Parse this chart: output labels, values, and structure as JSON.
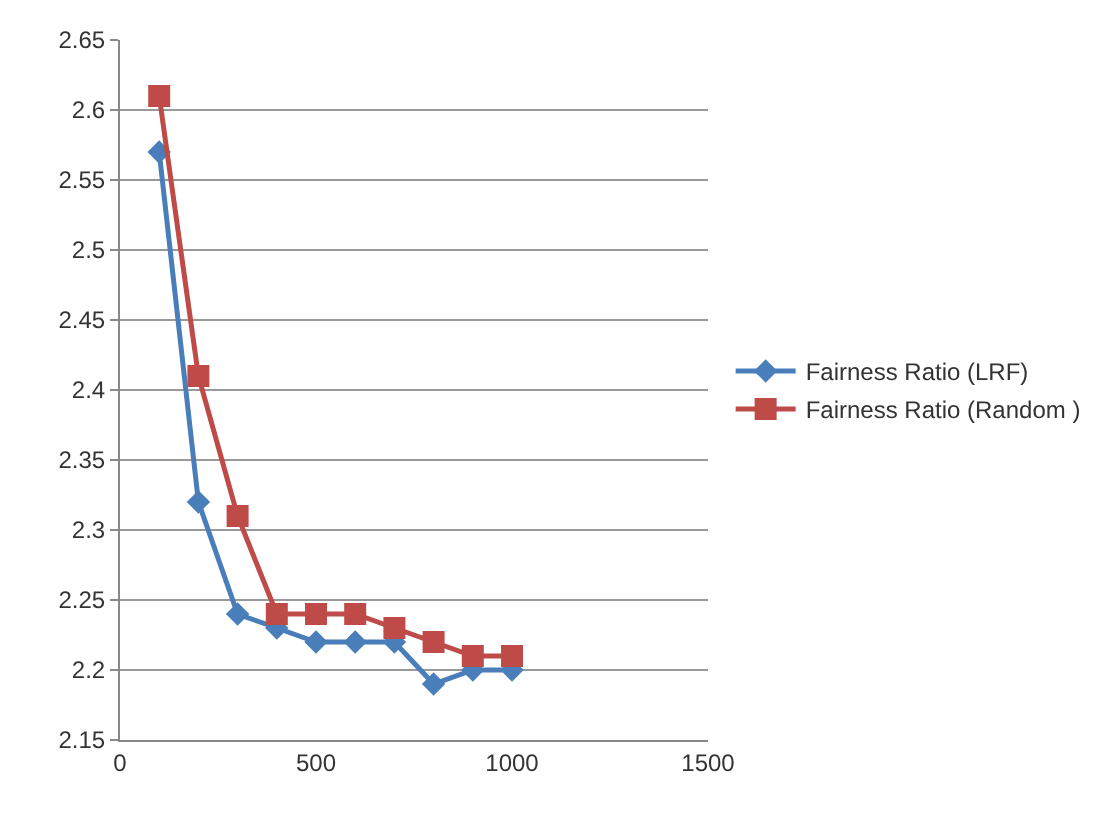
{
  "chart_data": {
    "type": "line",
    "x": [
      100,
      200,
      300,
      400,
      500,
      600,
      700,
      800,
      900,
      1000
    ],
    "series": [
      {
        "name": "Fairness Ratio (LRF)",
        "color": "#4a7ebb",
        "marker": "diamond",
        "values": [
          2.57,
          2.32,
          2.24,
          2.23,
          2.22,
          2.22,
          2.22,
          2.19,
          2.2,
          2.2
        ]
      },
      {
        "name": "Fairness Ratio (Random )",
        "color": "#be4b48",
        "marker": "square",
        "values": [
          2.61,
          2.41,
          2.31,
          2.24,
          2.24,
          2.24,
          2.23,
          2.22,
          2.21,
          2.21
        ]
      }
    ],
    "xlim": [
      0,
      1500
    ],
    "xticks": [
      0,
      500,
      1000,
      1500
    ],
    "ylim": [
      2.15,
      2.65
    ],
    "yticks": [
      2.15,
      2.2,
      2.25,
      2.3,
      2.35,
      2.4,
      2.45,
      2.5,
      2.55,
      2.6,
      2.65
    ],
    "grid": "y",
    "legend": "right",
    "line_style": "solid"
  }
}
